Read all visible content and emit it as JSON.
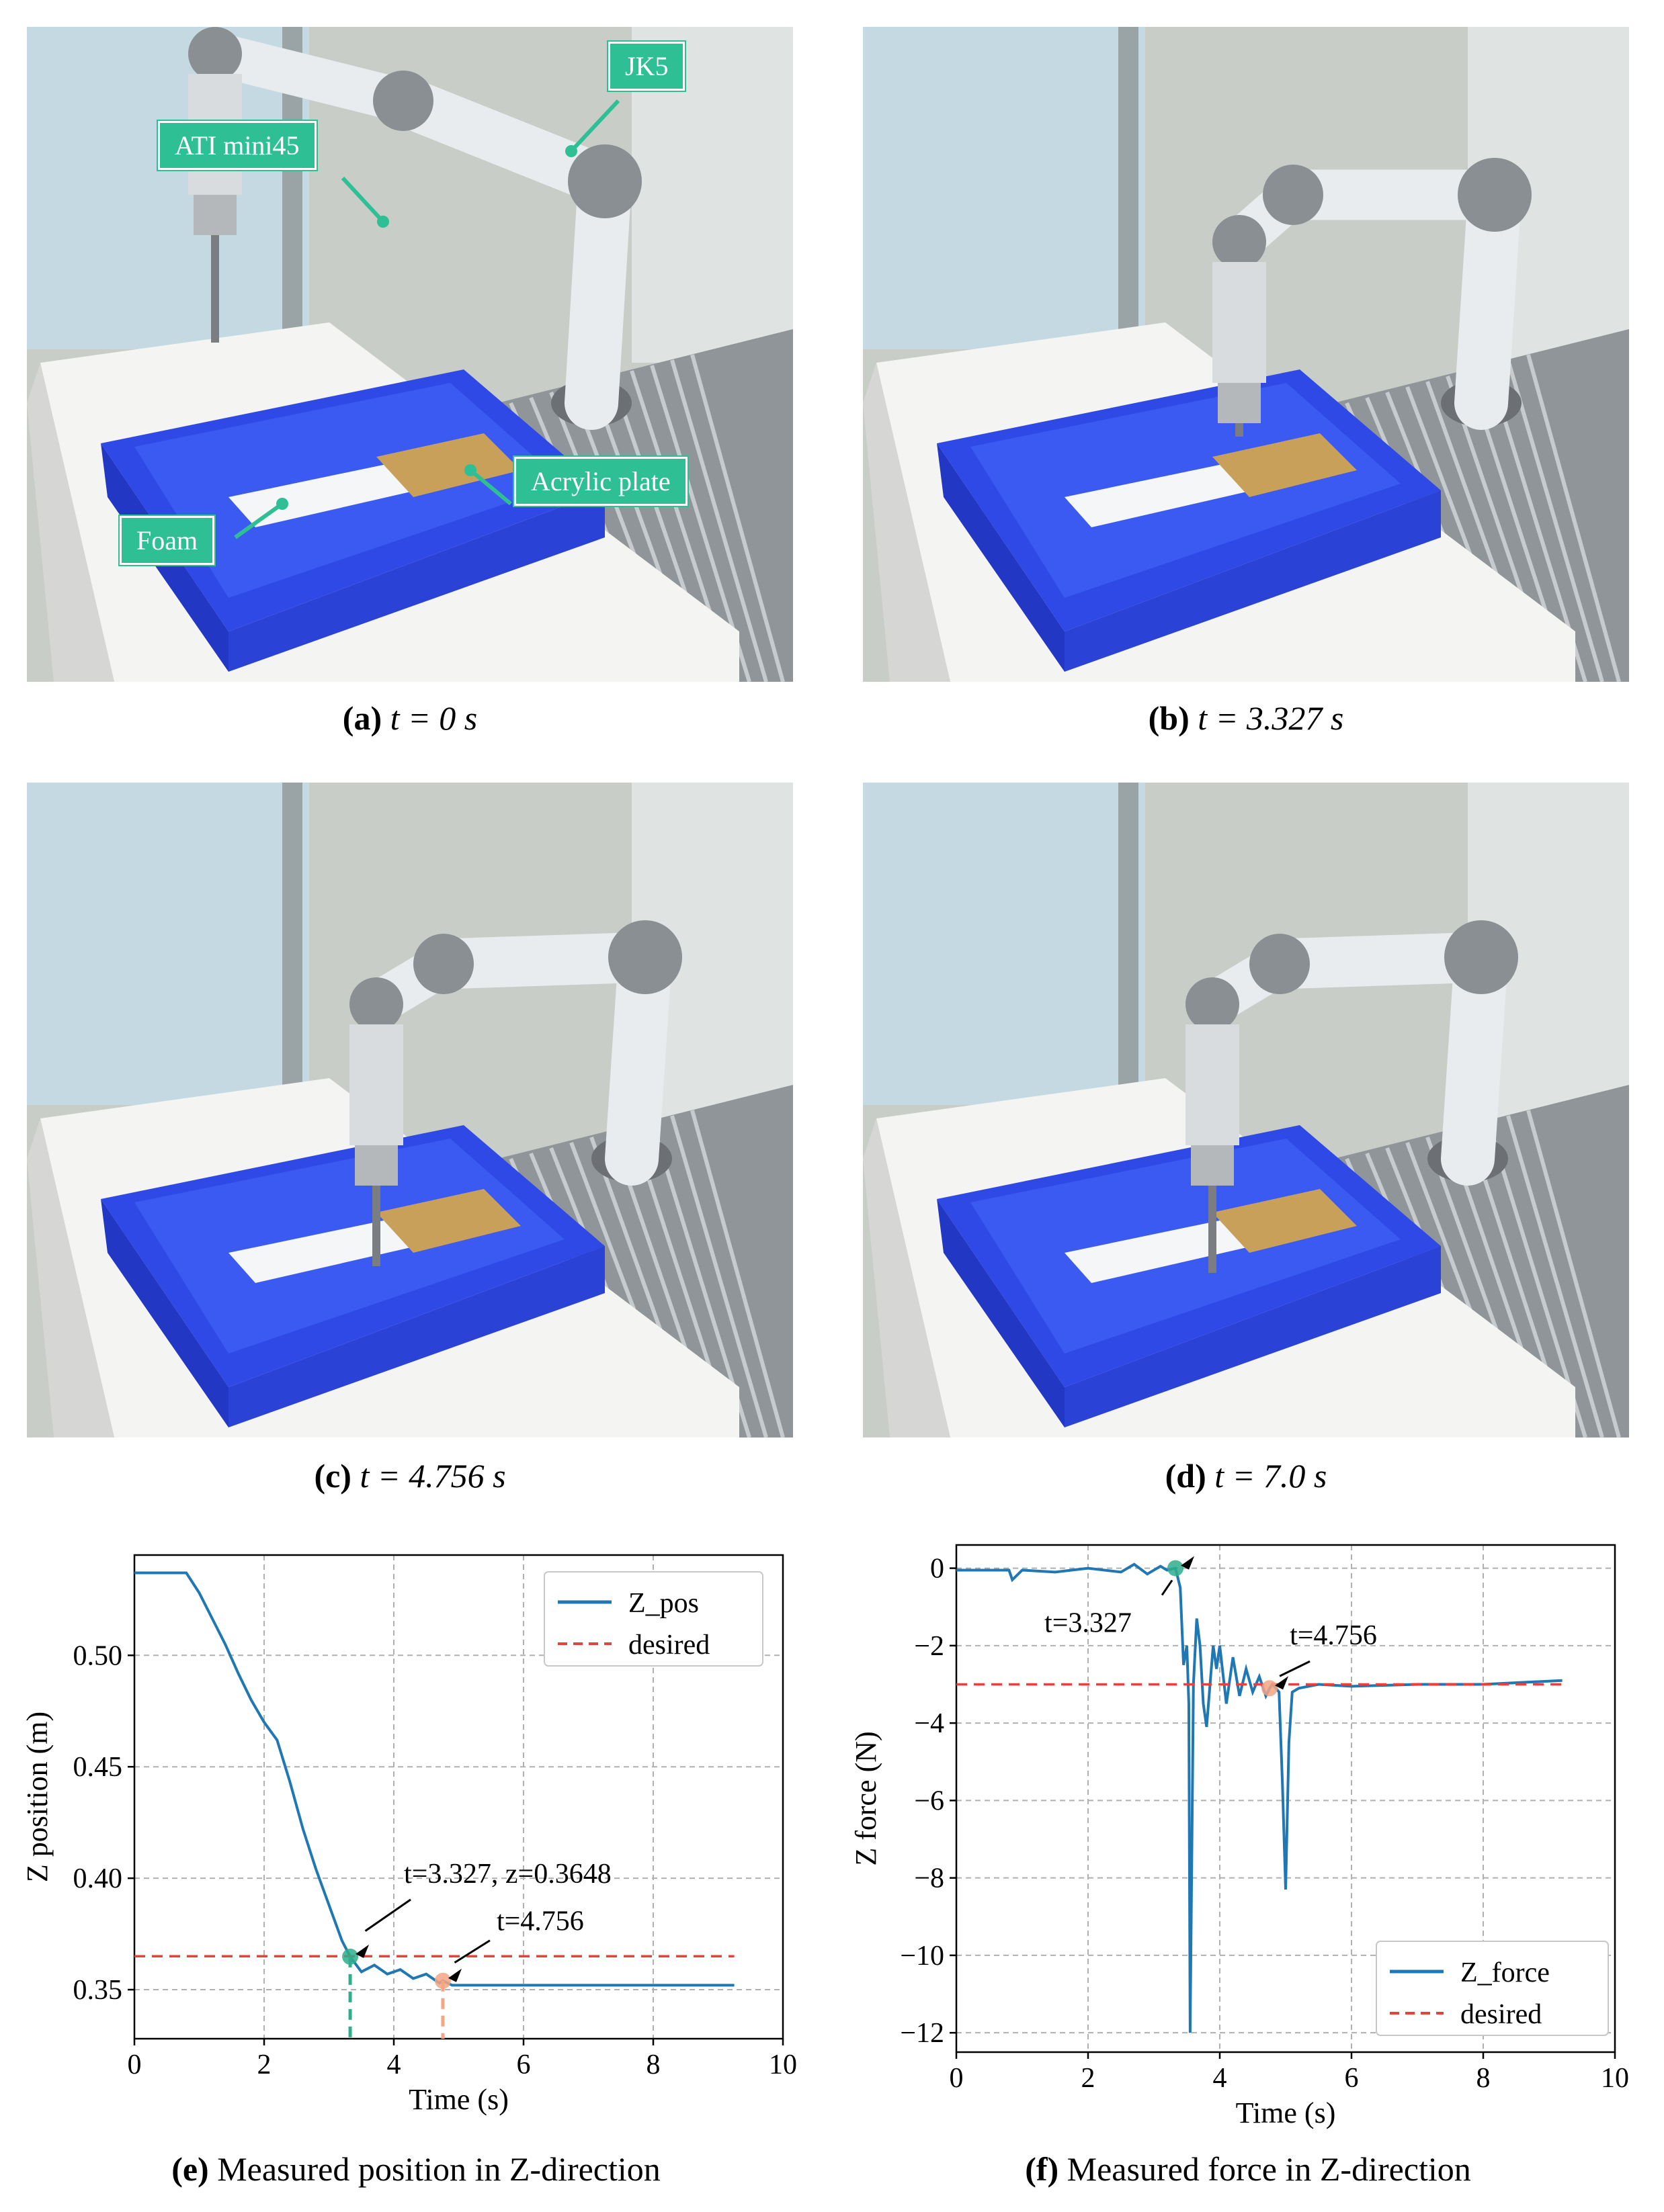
{
  "photos": [
    {
      "id": "a",
      "letter": "(a)",
      "time_text": "t = 0 s"
    },
    {
      "id": "b",
      "letter": "(b)",
      "time_text": "t = 3.327 s"
    },
    {
      "id": "c",
      "letter": "(c)",
      "time_text": "t = 4.756 s"
    },
    {
      "id": "d",
      "letter": "(d)",
      "time_text": "t = 7.0 s"
    }
  ],
  "callouts": {
    "jk5": "JK5",
    "ati": "ATI mini45",
    "acrylic": "Acrylic plate",
    "foam": "Foam"
  },
  "captions": {
    "e_letter": "(e)",
    "e_text": "Measured position in Z-direction",
    "f_letter": "(f)",
    "f_text": "Measured force in Z-direction"
  },
  "colors": {
    "series": "#1f77b4",
    "desired": "#e8413b",
    "teal": "#2fae8c",
    "orange": "#f4a582"
  },
  "chart_data": [
    {
      "type": "line",
      "xlabel": "Time (s)",
      "ylabel": "Z position (m)",
      "xlim": [
        0,
        10
      ],
      "ylim": [
        0.328,
        0.545
      ],
      "xticks": [
        0,
        2,
        4,
        6,
        8,
        10
      ],
      "yticks": [
        0.35,
        0.4,
        0.45,
        0.5
      ],
      "ytick_labels": [
        "0.35",
        "0.40",
        "0.45",
        "0.50"
      ],
      "grid": true,
      "legend_position": "top-right",
      "series": [
        {
          "name": "Z_pos",
          "x": [
            0,
            0.8,
            1.0,
            1.4,
            1.6,
            1.8,
            2.0,
            2.2,
            2.4,
            2.6,
            2.8,
            3.0,
            3.2,
            3.327,
            3.5,
            3.7,
            3.9,
            4.1,
            4.3,
            4.5,
            4.7,
            4.756,
            4.9,
            5.2,
            6,
            7,
            8,
            9.25
          ],
          "y": [
            0.537,
            0.537,
            0.528,
            0.505,
            0.492,
            0.48,
            0.47,
            0.462,
            0.443,
            0.422,
            0.404,
            0.388,
            0.372,
            0.3648,
            0.358,
            0.361,
            0.357,
            0.359,
            0.355,
            0.357,
            0.353,
            0.354,
            0.352,
            0.352,
            0.352,
            0.352,
            0.352,
            0.352
          ]
        },
        {
          "name": "desired",
          "x": [
            0,
            9.25
          ],
          "y": [
            0.365,
            0.365
          ]
        }
      ],
      "annotations": [
        {
          "text": "t=3.327, z=0.3648",
          "x": 3.327,
          "y": 0.3648
        },
        {
          "text": "t=4.756",
          "x": 4.756,
          "y": 0.354
        }
      ]
    },
    {
      "type": "line",
      "xlabel": "Time (s)",
      "ylabel": "Z force (N)",
      "xlim": [
        0,
        10
      ],
      "ylim": [
        -12.5,
        0.6
      ],
      "xticks": [
        0,
        2,
        4,
        6,
        8,
        10
      ],
      "yticks": [
        0,
        -2,
        -4,
        -6,
        -8,
        -10,
        -12
      ],
      "ytick_labels": [
        "0",
        "−2",
        "−4",
        "−6",
        "−8",
        "−10",
        "−12"
      ],
      "grid": true,
      "legend_position": "bottom-right",
      "series": [
        {
          "name": "Z_force",
          "x": [
            0,
            0.5,
            0.8,
            0.85,
            1.0,
            1.5,
            2.0,
            2.5,
            2.7,
            2.9,
            3.1,
            3.2,
            3.327,
            3.4,
            3.45,
            3.5,
            3.53,
            3.55,
            3.6,
            3.65,
            3.7,
            3.75,
            3.8,
            3.9,
            3.95,
            4.0,
            4.1,
            4.2,
            4.3,
            4.4,
            4.5,
            4.6,
            4.7,
            4.756,
            4.8,
            4.9,
            4.95,
            5.0,
            5.05,
            5.1,
            5.2,
            5.5,
            6,
            7,
            8,
            9.2
          ],
          "y": [
            -0.05,
            -0.05,
            -0.05,
            -0.3,
            -0.05,
            -0.1,
            0,
            -0.1,
            0.1,
            -0.15,
            0.05,
            -0.05,
            0,
            -0.5,
            -2.5,
            -2.0,
            -3.5,
            -12.0,
            -3.0,
            -1.3,
            -2.0,
            -3.5,
            -4.1,
            -2.0,
            -2.6,
            -2.0,
            -3.5,
            -2.3,
            -3.3,
            -2.6,
            -3.2,
            -2.8,
            -3.3,
            -3.1,
            -3.0,
            -3.2,
            -5.5,
            -8.3,
            -4.5,
            -3.2,
            -3.1,
            -3.0,
            -3.05,
            -3.0,
            -3.0,
            -2.9
          ]
        },
        {
          "name": "desired",
          "x": [
            0,
            9.2
          ],
          "y": [
            -3,
            -3
          ]
        }
      ],
      "annotations": [
        {
          "text": "t=3.327",
          "x": 3.327,
          "y": 0
        },
        {
          "text": "t=4.756",
          "x": 4.756,
          "y": -3.1
        }
      ]
    }
  ]
}
